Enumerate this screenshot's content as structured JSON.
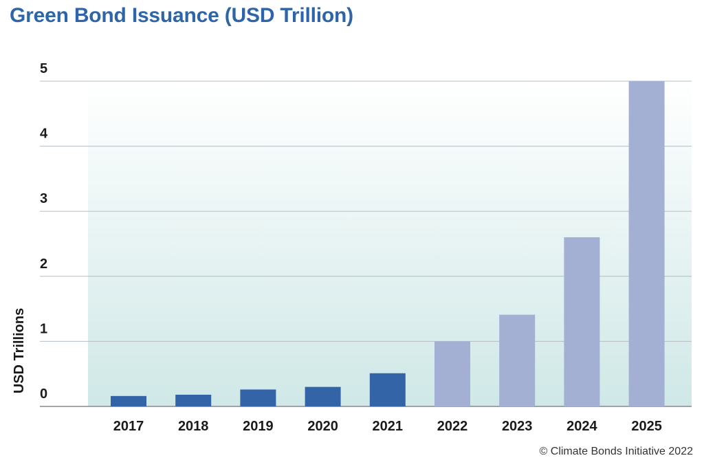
{
  "chart_data": {
    "type": "bar",
    "title": "Green Bond Issuance (USD Trillion)",
    "xlabel": "",
    "ylabel": "USD Trillions",
    "ylim": [
      0,
      5
    ],
    "yticks": [
      "0",
      "1",
      "2",
      "3",
      "4",
      "5"
    ],
    "categories": [
      "2017",
      "2018",
      "2019",
      "2020",
      "2021",
      "2022",
      "2023",
      "2024",
      "2025"
    ],
    "values": [
      0.16,
      0.18,
      0.26,
      0.3,
      0.51,
      1.0,
      1.41,
      2.6,
      5.0
    ],
    "series_types": [
      "actual",
      "actual",
      "actual",
      "actual",
      "actual",
      "projected",
      "projected",
      "projected",
      "projected"
    ],
    "colors": {
      "actual": "#3464a8",
      "projected": "#a3b0d4",
      "grid": "#b5bcc6",
      "axis": "#888888"
    },
    "grid": true
  },
  "credit": "© Climate Bonds Initiative 2022"
}
